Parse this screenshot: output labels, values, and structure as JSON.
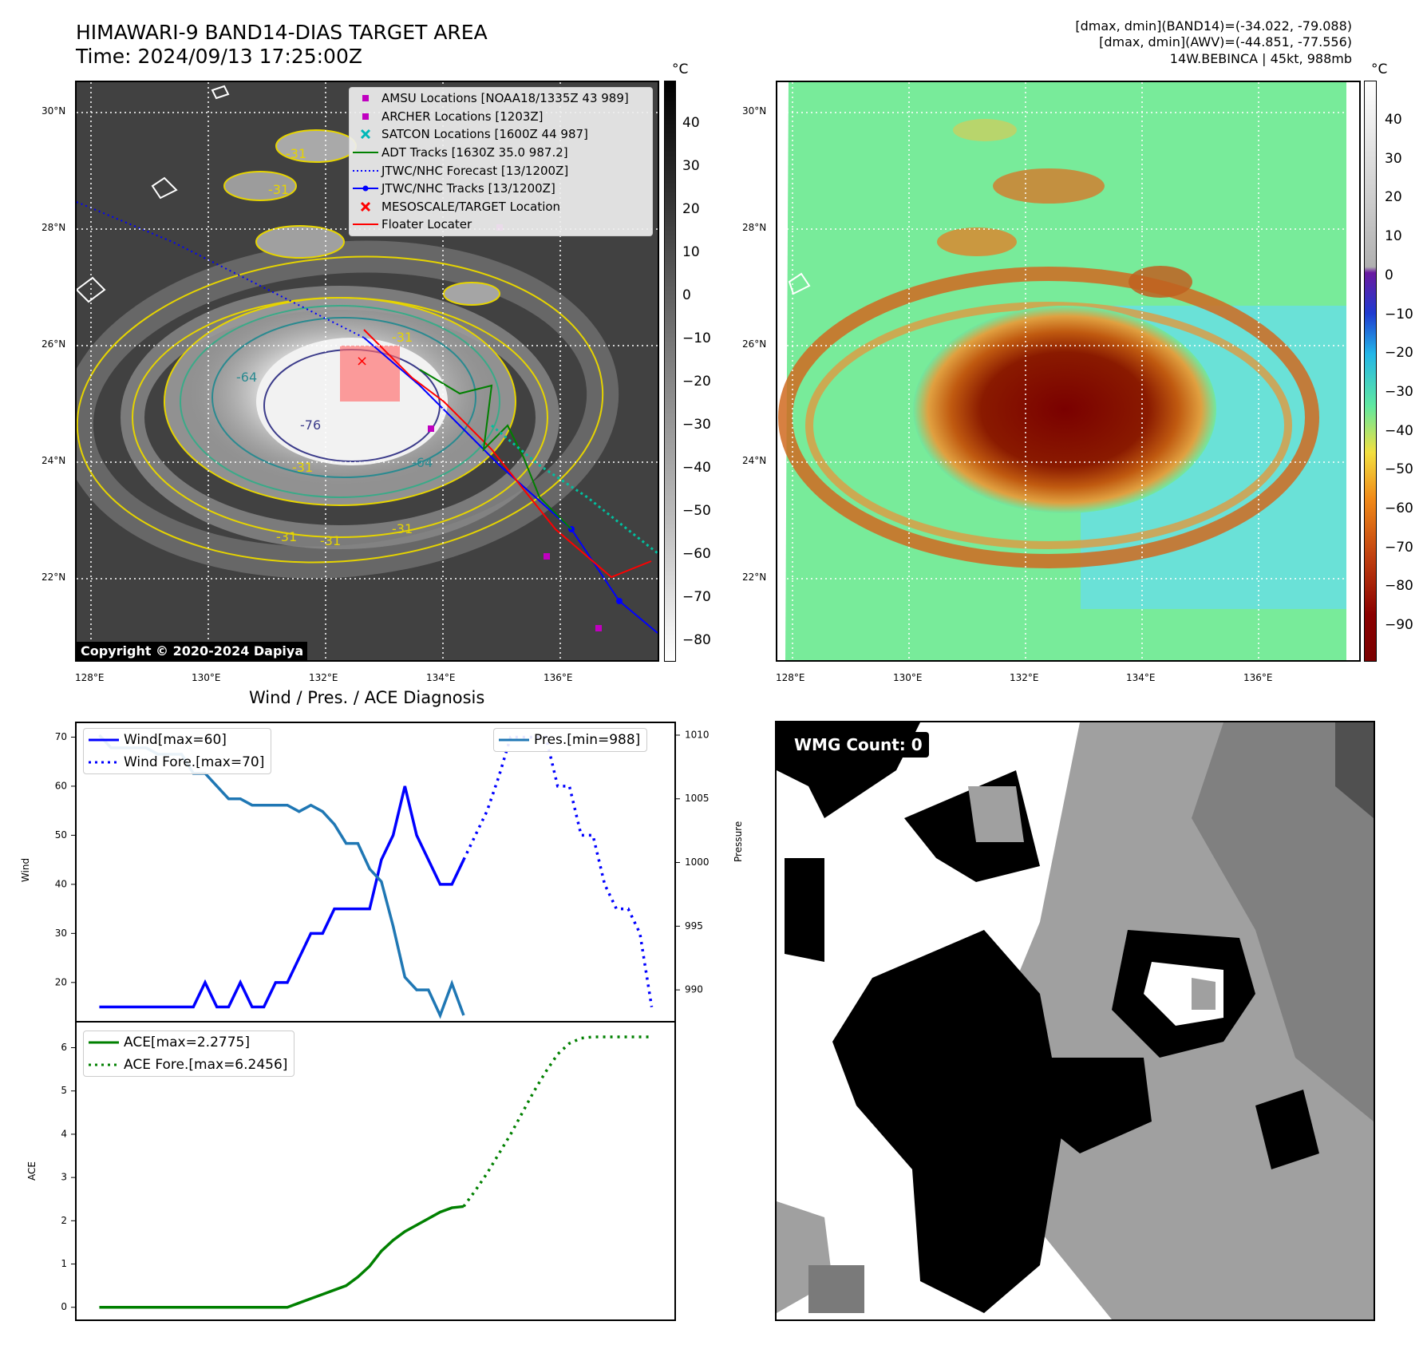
{
  "header": {
    "title_line1": "HIMAWARI-9 BAND14-DIAS TARGET AREA",
    "title_line2": "Time: 2024/09/13 17:25:00Z",
    "info_line1": "[dmax, dmin](BAND14)=(-34.022, -79.088)",
    "info_line2": "[dmax, dmin](AWV)=(-44.851, -77.556)",
    "info_line3": "14W.BEBINCA | 45kt, 988mb"
  },
  "map_axes": {
    "lon_ticks": [
      "128°E",
      "130°E",
      "132°E",
      "134°E",
      "136°E"
    ],
    "lat_ticks": [
      "30°N",
      "28°N",
      "26°N",
      "24°N",
      "22°N"
    ]
  },
  "left_map": {
    "colorbar_unit": "°C",
    "colorbar_ticks": [
      "40",
      "30",
      "20",
      "10",
      "0",
      "−10",
      "−20",
      "−30",
      "−40",
      "−50",
      "−60",
      "−70",
      "−80"
    ],
    "legend": [
      {
        "label": "AMSU Locations [NOAA18/1335Z 43 989]",
        "symbol": "square",
        "color": "#c000c0"
      },
      {
        "label": "ARCHER Locations [1203Z]",
        "symbol": "square",
        "color": "#c000c0"
      },
      {
        "label": "SATCON Locations [1600Z 44 987]",
        "symbol": "x",
        "color": "#00b8b8"
      },
      {
        "label": "ADT Tracks [1630Z 35.0 987.2]",
        "symbol": "line",
        "color": "#008000"
      },
      {
        "label": "JTWC/NHC Forecast [13/1200Z]",
        "symbol": "dotted",
        "color": "#0000ff"
      },
      {
        "label": "JTWC/NHC Tracks [13/1200Z]",
        "symbol": "line-dot",
        "color": "#0000ff"
      },
      {
        "label": "MESOSCALE/TARGET Location",
        "symbol": "x",
        "color": "#ff0000"
      },
      {
        "label": "Floater Locater",
        "symbol": "line",
        "color": "#ff0000"
      }
    ],
    "contour_labels": [
      "-31",
      "-31",
      "-64",
      "-76",
      "-31",
      "-64",
      "-31",
      "-31",
      "-31",
      "-31"
    ],
    "copyright": "Copyright © 2020-2024 Dapiya"
  },
  "right_map": {
    "colorbar_unit": "°C",
    "colorbar_ticks": [
      "40",
      "30",
      "20",
      "10",
      "0",
      "−10",
      "−20",
      "−30",
      "−40",
      "−50",
      "−60",
      "−70",
      "−80",
      "−90"
    ]
  },
  "wmg_panel": {
    "label": "WMG Count: 0"
  },
  "chart_data": [
    {
      "type": "line",
      "title": "Wind / Pres. / ACE Diagnosis",
      "ylabel": "Wind",
      "ylim": [
        12,
        73
      ],
      "yticks": [
        "70",
        "60",
        "50",
        "40",
        "30",
        "20"
      ],
      "y2label": "Pressure",
      "y2lim": [
        987.5,
        1011
      ],
      "y2ticks": [
        "1010",
        "1005",
        "1000",
        "995",
        "990"
      ],
      "xlim": [
        -2,
        49
      ],
      "series": [
        {
          "name": "Wind[max=60]",
          "axis": "left",
          "color": "#0000ff",
          "style": "solid",
          "x": [
            0,
            1,
            2,
            3,
            4,
            5,
            6,
            7,
            8,
            9,
            10,
            11,
            12,
            13,
            14,
            15,
            16,
            17,
            18,
            19,
            20,
            21,
            22,
            23,
            24,
            25,
            26,
            27,
            28,
            29,
            30,
            31
          ],
          "values": [
            15,
            15,
            15,
            15,
            15,
            15,
            15,
            15,
            15,
            20,
            15,
            15,
            20,
            15,
            15,
            20,
            20,
            25,
            30,
            30,
            35,
            35,
            35,
            35,
            45,
            50,
            60,
            50,
            45,
            40,
            40,
            45
          ]
        },
        {
          "name": "Wind Fore.[max=70]",
          "axis": "left",
          "color": "#0000ff",
          "style": "dotted",
          "x": [
            31,
            32,
            33,
            34,
            35,
            36,
            37,
            38,
            39,
            40,
            41,
            42,
            43,
            44,
            45,
            46,
            47
          ],
          "values": [
            45,
            50,
            55,
            62,
            70,
            70,
            70,
            70,
            60,
            60,
            50,
            50,
            40,
            35,
            35,
            30,
            15
          ]
        },
        {
          "name": "Pres.[min=988]",
          "axis": "right",
          "color": "#1f77b4",
          "style": "solid",
          "x": [
            0,
            1,
            2,
            3,
            4,
            5,
            6,
            7,
            8,
            9,
            10,
            11,
            12,
            13,
            14,
            15,
            16,
            17,
            18,
            19,
            20,
            21,
            22,
            23,
            24,
            25,
            26,
            27,
            28,
            29,
            30,
            31
          ],
          "values": [
            1010,
            1009,
            1009,
            1009,
            1009,
            1008.5,
            1008.5,
            1008.5,
            1007,
            1007,
            1006,
            1005,
            1005,
            1004.5,
            1004.5,
            1004.5,
            1004.5,
            1004,
            1004.5,
            1004,
            1003,
            1001.5,
            1001.5,
            999.5,
            998.5,
            995,
            991,
            990,
            990,
            988,
            990.5,
            988
          ]
        }
      ]
    },
    {
      "type": "line",
      "ylabel": "ACE",
      "ylim": [
        -0.3,
        6.6
      ],
      "yticks": [
        "6",
        "5",
        "4",
        "3",
        "2",
        "1",
        "0"
      ],
      "xlim": [
        -2,
        49
      ],
      "series": [
        {
          "name": "ACE[max=2.2775]",
          "color": "#008000",
          "style": "solid",
          "x": [
            0,
            16,
            17,
            18,
            19,
            20,
            21,
            22,
            23,
            24,
            25,
            26,
            27,
            28,
            29,
            30,
            31
          ],
          "values": [
            0,
            0,
            0.1,
            0.2,
            0.3,
            0.4,
            0.5,
            0.7,
            0.95,
            1.3,
            1.55,
            1.75,
            1.9,
            2.05,
            2.2,
            2.3,
            2.33
          ]
        },
        {
          "name": "ACE Fore.[max=6.2456]",
          "color": "#008000",
          "style": "dotted",
          "x": [
            31,
            32,
            33,
            34,
            35,
            36,
            37,
            38,
            39,
            40,
            41,
            42,
            43,
            44,
            45,
            46,
            47
          ],
          "values": [
            2.33,
            2.7,
            3.1,
            3.55,
            4.0,
            4.5,
            5.0,
            5.45,
            5.85,
            6.1,
            6.22,
            6.25,
            6.25,
            6.25,
            6.25,
            6.25,
            6.25
          ]
        }
      ]
    }
  ]
}
